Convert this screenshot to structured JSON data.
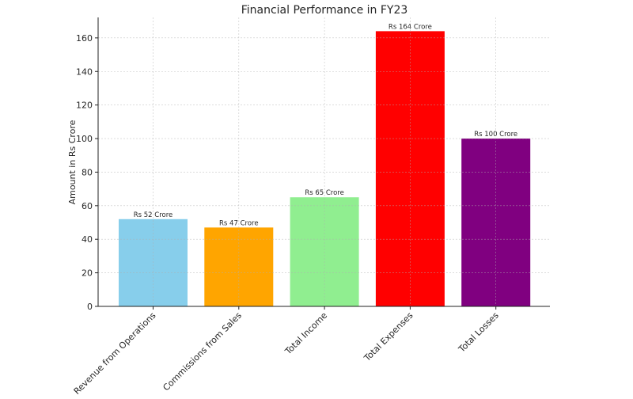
{
  "chart_data": {
    "type": "bar",
    "title": "Financial Performance in FY23",
    "xlabel": "",
    "ylabel": "Amount in Rs Crore",
    "categories": [
      "Revenue from Operations",
      "Commissions from Sales",
      "Total Income",
      "Total Expenses",
      "Total Losses"
    ],
    "values": [
      52,
      47,
      65,
      164,
      100
    ],
    "data_labels": [
      "Rs 52 Crore",
      "Rs 47 Crore",
      "Rs 65 Crore",
      "Rs 164 Crore",
      "Rs 100 Crore"
    ],
    "colors": [
      "#87ceeb",
      "#ffa500",
      "#90ee90",
      "#ff0000",
      "#800080"
    ],
    "ylim": [
      0,
      172.2
    ],
    "yticks": [
      0,
      20,
      40,
      60,
      80,
      100,
      120,
      140,
      160
    ],
    "grid": true
  }
}
